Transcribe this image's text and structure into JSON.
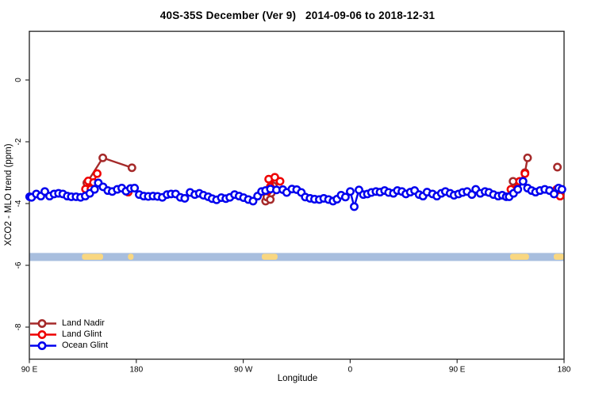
{
  "chart_data": {
    "type": "scatter",
    "title": "40S-35S December (Ver 9)   2014-09-06 to 2018-12-31",
    "xlabel": "Longitude",
    "ylabel": "XCO2 - MLO trend (ppm)",
    "xlim_deg": [
      90,
      540
    ],
    "ylim_ppm": [
      1.6,
      -9.0
    ],
    "grid": false,
    "legend_position": "bottom-left",
    "x_ticks": [
      {
        "deg": 90,
        "label": "90 E"
      },
      {
        "deg": 180,
        "label": "180"
      },
      {
        "deg": 270,
        "label": "90 W"
      },
      {
        "deg": 360,
        "label": "0"
      },
      {
        "deg": 450,
        "label": "90 E"
      },
      {
        "deg": 540,
        "label": "180"
      }
    ],
    "y_ticks": [
      {
        "ppm": 0,
        "label": "0"
      },
      {
        "ppm": -2,
        "label": "-2"
      },
      {
        "ppm": -4,
        "label": "-4"
      },
      {
        "ppm": -6,
        "label": "-6"
      },
      {
        "ppm": -8,
        "label": "-8"
      }
    ],
    "map_band": {
      "ocean_color": "#A8BEDE",
      "land_color": "#F9D781",
      "ppm_top": -5.6,
      "ppm_bottom": -5.86,
      "land_patches": [
        {
          "from": 134.3,
          "to": 152.1
        },
        {
          "from": 173.0,
          "to": 177.7
        },
        {
          "from": 285.6,
          "to": 298.9
        },
        {
          "from": 494.6,
          "to": 510.5
        },
        {
          "from": 531.3,
          "to": 540.0
        }
      ]
    },
    "series": [
      {
        "id": "land-nadir",
        "name": "Land Nadir",
        "color": "#A52A2A",
        "marker": "open-circle",
        "line": true,
        "groups": [
          [
            [
              138.4,
              -3.33
            ],
            [
              151.8,
              -2.52
            ],
            [
              176.3,
              -2.84
            ]
          ],
          [
            [
              288.8,
              -3.92
            ],
            [
              289.9,
              -3.79
            ],
            [
              292.8,
              -3.87
            ],
            [
              293.6,
              -3.66
            ],
            [
              295.4,
              -3.43
            ]
          ],
          [
            [
              497.1,
              -3.28
            ]
          ],
          [
            [
              507.1,
              -3.0
            ],
            [
              509.3,
              -2.52
            ]
          ],
          [
            [
              534.4,
              -2.82
            ]
          ]
        ]
      },
      {
        "id": "land-glint",
        "name": "Land Glint",
        "color": "#EE0000",
        "marker": "open-circle",
        "line": true,
        "groups": [
          [
            [
              137.3,
              -3.53
            ],
            [
              139.6,
              -3.27
            ],
            [
              141.8,
              -3.53
            ],
            [
              144.0,
              -3.32
            ],
            [
              147.1,
              -3.03
            ]
          ],
          [
            [
              173.2,
              -3.63
            ]
          ],
          [
            [
              290.6,
              -3.6
            ],
            [
              291.4,
              -3.21
            ],
            [
              292.8,
              -3.46
            ],
            [
              296.6,
              -3.15
            ],
            [
              301.0,
              -3.28
            ]
          ],
          [
            [
              495.3,
              -3.54
            ],
            [
              502.6,
              -3.28
            ],
            [
              507.1,
              -3.03
            ]
          ],
          [
            [
              533.8,
              -3.54
            ],
            [
              536.7,
              -3.76
            ]
          ]
        ]
      },
      {
        "id": "ocean-glint",
        "name": "Ocean Glint",
        "color": "#0000EE",
        "marker": "open-circle",
        "line": true,
        "groups": [
          [
            [
              90.3,
              -3.78
            ],
            [
              91.9,
              -3.8
            ],
            [
              95.9,
              -3.69
            ],
            [
              99.7,
              -3.76
            ],
            [
              103.0,
              -3.61
            ],
            [
              107.0,
              -3.76
            ],
            [
              110.8,
              -3.69
            ],
            [
              114.6,
              -3.67
            ],
            [
              118.2,
              -3.69
            ],
            [
              121.9,
              -3.76
            ],
            [
              125.3,
              -3.78
            ],
            [
              129.3,
              -3.78
            ],
            [
              133.1,
              -3.8
            ],
            [
              137.1,
              -3.76
            ],
            [
              140.9,
              -3.67
            ],
            [
              144.9,
              -3.54
            ],
            [
              148.0,
              -3.33
            ],
            [
              152.0,
              -3.46
            ],
            [
              156.0,
              -3.58
            ],
            [
              159.8,
              -3.61
            ],
            [
              164.0,
              -3.54
            ],
            [
              167.8,
              -3.5
            ],
            [
              171.4,
              -3.6
            ],
            [
              175.2,
              -3.51
            ],
            [
              178.5,
              -3.5
            ],
            [
              182.5,
              -3.71
            ],
            [
              186.3,
              -3.76
            ],
            [
              190.1,
              -3.77
            ],
            [
              194.1,
              -3.76
            ],
            [
              197.9,
              -3.77
            ],
            [
              201.9,
              -3.8
            ],
            [
              205.9,
              -3.71
            ],
            [
              209.3,
              -3.69
            ],
            [
              213.1,
              -3.69
            ],
            [
              217.1,
              -3.8
            ],
            [
              220.8,
              -3.83
            ],
            [
              225.3,
              -3.64
            ],
            [
              229.3,
              -3.71
            ],
            [
              233.1,
              -3.67
            ],
            [
              236.5,
              -3.73
            ],
            [
              240.5,
              -3.78
            ],
            [
              243.8,
              -3.84
            ],
            [
              247.6,
              -3.88
            ],
            [
              251.6,
              -3.81
            ],
            [
              255.4,
              -3.84
            ],
            [
              258.7,
              -3.8
            ],
            [
              262.7,
              -3.71
            ],
            [
              266.5,
              -3.76
            ],
            [
              270.3,
              -3.81
            ],
            [
              274.3,
              -3.87
            ],
            [
              278.3,
              -3.92
            ],
            [
              282.1,
              -3.76
            ],
            [
              285.4,
              -3.61
            ],
            [
              288.8,
              -3.58
            ],
            [
              292.9,
              -3.53
            ],
            [
              298.0,
              -3.56
            ],
            [
              303.3,
              -3.55
            ],
            [
              306.6,
              -3.64
            ],
            [
              311.0,
              -3.53
            ],
            [
              315.0,
              -3.55
            ],
            [
              318.9,
              -3.64
            ],
            [
              322.2,
              -3.79
            ],
            [
              326.2,
              -3.83
            ],
            [
              330.0,
              -3.86
            ],
            [
              334.0,
              -3.87
            ],
            [
              337.8,
              -3.83
            ],
            [
              341.8,
              -3.87
            ],
            [
              345.6,
              -3.92
            ],
            [
              348.9,
              -3.86
            ],
            [
              352.4,
              -3.73
            ],
            [
              356.0,
              -3.79
            ],
            [
              360.1,
              -3.61
            ],
            [
              363.4,
              -4.1
            ],
            [
              367.4,
              -3.56
            ],
            [
              371.1,
              -3.71
            ],
            [
              374.5,
              -3.69
            ],
            [
              377.9,
              -3.64
            ],
            [
              381.7,
              -3.61
            ],
            [
              385.2,
              -3.63
            ],
            [
              389.0,
              -3.58
            ],
            [
              392.4,
              -3.64
            ],
            [
              396.4,
              -3.67
            ],
            [
              399.7,
              -3.58
            ],
            [
              403.5,
              -3.61
            ],
            [
              406.9,
              -3.69
            ],
            [
              410.6,
              -3.63
            ],
            [
              414.2,
              -3.58
            ],
            [
              418.0,
              -3.71
            ],
            [
              421.3,
              -3.76
            ],
            [
              424.7,
              -3.63
            ],
            [
              429.3,
              -3.69
            ],
            [
              433.0,
              -3.76
            ],
            [
              436.7,
              -3.67
            ],
            [
              440.1,
              -3.61
            ],
            [
              444.1,
              -3.67
            ],
            [
              447.4,
              -3.73
            ],
            [
              451.2,
              -3.69
            ],
            [
              454.6,
              -3.64
            ],
            [
              458.4,
              -3.61
            ],
            [
              462.4,
              -3.71
            ],
            [
              465.7,
              -3.54
            ],
            [
              469.5,
              -3.67
            ],
            [
              473.5,
              -3.61
            ],
            [
              476.8,
              -3.64
            ],
            [
              480.6,
              -3.71
            ],
            [
              484.6,
              -3.76
            ],
            [
              488.0,
              -3.73
            ],
            [
              491.3,
              -3.78
            ],
            [
              493.8,
              -3.78
            ],
            [
              497.5,
              -3.67
            ],
            [
              501.1,
              -3.54
            ],
            [
              505.5,
              -3.28
            ],
            [
              509.3,
              -3.5
            ],
            [
              512.7,
              -3.58
            ],
            [
              516.0,
              -3.63
            ],
            [
              519.8,
              -3.58
            ],
            [
              523.8,
              -3.54
            ],
            [
              527.8,
              -3.58
            ],
            [
              531.6,
              -3.69
            ],
            [
              535.4,
              -3.5
            ],
            [
              538.2,
              -3.54
            ]
          ]
        ]
      }
    ]
  }
}
